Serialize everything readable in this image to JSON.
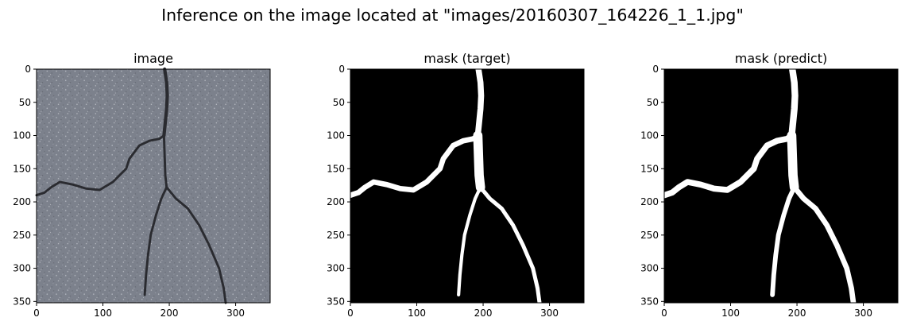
{
  "figure": {
    "title": "Inference on the image located at \"images/20160307_164226_1_1.jpg\""
  },
  "colors": {
    "asphalt": "#7c818c",
    "crack": "#2a2b30",
    "mask_bg": "#000000",
    "mask_fg": "#ffffff"
  },
  "chart_data": [
    {
      "type": "heatmap",
      "title": "image",
      "content": "grayscale asphalt photo with dark crack",
      "xlim": [
        0,
        352
      ],
      "ylim": [
        352,
        0
      ],
      "x_ticks": [
        0,
        100,
        200,
        300
      ],
      "y_ticks": [
        0,
        50,
        100,
        150,
        200,
        250,
        300,
        350
      ]
    },
    {
      "type": "heatmap",
      "title": "mask (target)",
      "content": "binary mask, white crack on black",
      "xlim": [
        0,
        352
      ],
      "ylim": [
        352,
        0
      ],
      "x_ticks": [
        0,
        100,
        200,
        300
      ],
      "y_ticks": [
        0,
        50,
        100,
        150,
        200,
        250,
        300,
        350
      ]
    },
    {
      "type": "heatmap",
      "title": "mask (predict)",
      "content": "binary mask, white crack on black",
      "xlim": [
        0,
        352
      ],
      "ylim": [
        352,
        0
      ],
      "x_ticks": [
        0,
        100,
        200,
        300
      ],
      "y_ticks": [
        0,
        50,
        100,
        150,
        200,
        250,
        300,
        350
      ]
    }
  ]
}
